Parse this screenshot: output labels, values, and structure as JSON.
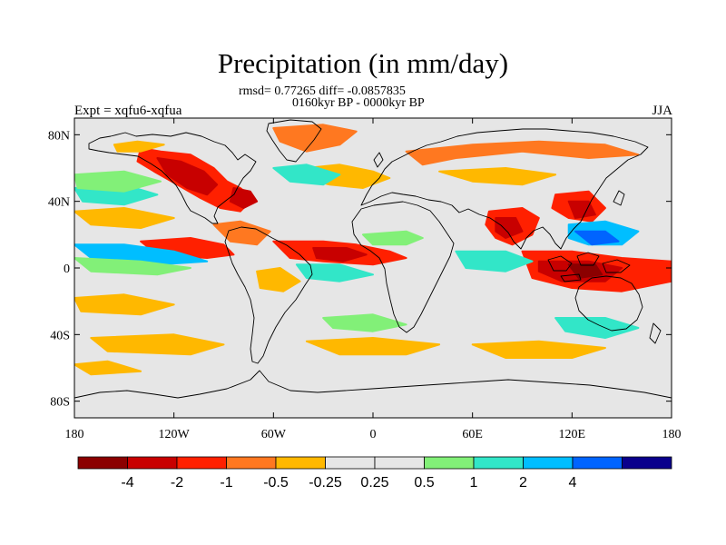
{
  "figure": {
    "title": "Precipitation (in mm/day)",
    "stats": "rmsd= 0.77265 diff= -0.0857835",
    "period": "0160kyr BP - 0000kyr BP",
    "experiment": "Expt = xqfu6-xqfua",
    "season": "JJA"
  },
  "axes": {
    "lon_ticks": [
      {
        "value": -180,
        "label": "180"
      },
      {
        "value": -120,
        "label": "120W"
      },
      {
        "value": -60,
        "label": "60W"
      },
      {
        "value": 0,
        "label": "0"
      },
      {
        "value": 60,
        "label": "60E"
      },
      {
        "value": 120,
        "label": "120E"
      },
      {
        "value": 180,
        "label": "180"
      }
    ],
    "lat_ticks": [
      {
        "value": 80,
        "label": "80N"
      },
      {
        "value": 40,
        "label": "40N"
      },
      {
        "value": 0,
        "label": "0"
      },
      {
        "value": -40,
        "label": "40S"
      },
      {
        "value": -80,
        "label": "80S"
      }
    ],
    "lon_range": [
      -180,
      180
    ],
    "lat_range": [
      -90,
      90
    ]
  },
  "colorbar": {
    "colors": [
      "#8b0000",
      "#c80000",
      "#ff2000",
      "#ff7820",
      "#ffb800",
      "#e6e6e6",
      "#e6e6e6",
      "#82f078",
      "#32e6c8",
      "#00beff",
      "#0064ff",
      "#0a008c"
    ],
    "boundaries": [
      {
        "value": -4,
        "label": "-4"
      },
      {
        "value": -2,
        "label": "-2"
      },
      {
        "value": -1,
        "label": "-1"
      },
      {
        "value": -0.5,
        "label": "-0.5"
      },
      {
        "value": -0.25,
        "label": "-0.25"
      },
      {
        "value": 0.25,
        "label": "0.25"
      },
      {
        "value": 0.5,
        "label": "0.5"
      },
      {
        "value": 1,
        "label": "1"
      },
      {
        "value": 2,
        "label": "2"
      },
      {
        "value": 4,
        "label": "4"
      }
    ]
  },
  "map_style": {
    "background": "#e6e6e6",
    "coastline": "#000000"
  },
  "anomaly_regions": [
    {
      "name": "north-america-dry",
      "color": "#ff2000",
      "points": [
        [
          -140,
          72
        ],
        [
          -128,
          70
        ],
        [
          -110,
          68
        ],
        [
          -96,
          60
        ],
        [
          -88,
          52
        ],
        [
          -80,
          48
        ],
        [
          -72,
          42
        ],
        [
          -80,
          34
        ],
        [
          -92,
          36
        ],
        [
          -104,
          42
        ],
        [
          -118,
          50
        ],
        [
          -132,
          58
        ],
        [
          -142,
          64
        ]
      ]
    },
    {
      "name": "north-america-dry-core",
      "color": "#c80000",
      "points": [
        [
          -130,
          66
        ],
        [
          -116,
          64
        ],
        [
          -102,
          58
        ],
        [
          -94,
          50
        ],
        [
          -100,
          44
        ],
        [
          -112,
          48
        ],
        [
          -124,
          56
        ]
      ]
    },
    {
      "name": "nw-america-orange",
      "color": "#ffb800",
      "points": [
        [
          -156,
          74
        ],
        [
          -142,
          76
        ],
        [
          -126,
          74
        ],
        [
          -140,
          70
        ],
        [
          -154,
          70
        ]
      ]
    },
    {
      "name": "east-us-dry",
      "color": "#c80000",
      "points": [
        [
          -84,
          48
        ],
        [
          -74,
          46
        ],
        [
          -70,
          40
        ],
        [
          -78,
          36
        ],
        [
          -86,
          40
        ]
      ]
    },
    {
      "name": "greenland-orange",
      "color": "#ff7820",
      "points": [
        [
          -60,
          84
        ],
        [
          -30,
          86
        ],
        [
          -10,
          82
        ],
        [
          -20,
          74
        ],
        [
          -40,
          70
        ],
        [
          -56,
          76
        ]
      ]
    },
    {
      "name": "arctic-orange",
      "color": "#ffb800",
      "points": [
        [
          -40,
          60
        ],
        [
          -20,
          62
        ],
        [
          0,
          58
        ],
        [
          10,
          54
        ],
        [
          -6,
          48
        ],
        [
          -26,
          50
        ],
        [
          -42,
          54
        ]
      ]
    },
    {
      "name": "eurasia-north-orange",
      "color": "#ff7820",
      "points": [
        [
          20,
          70
        ],
        [
          60,
          74
        ],
        [
          100,
          76
        ],
        [
          140,
          74
        ],
        [
          160,
          68
        ],
        [
          130,
          66
        ],
        [
          90,
          70
        ],
        [
          50,
          66
        ],
        [
          30,
          62
        ]
      ]
    },
    {
      "name": "central-asia-orange",
      "color": "#ffb800",
      "points": [
        [
          40,
          58
        ],
        [
          80,
          60
        ],
        [
          110,
          56
        ],
        [
          90,
          50
        ],
        [
          60,
          52
        ]
      ]
    },
    {
      "name": "pacific-east-blue",
      "color": "#32e6c8",
      "points": [
        [
          -180,
          48
        ],
        [
          -150,
          50
        ],
        [
          -130,
          44
        ],
        [
          -150,
          38
        ],
        [
          -175,
          40
        ]
      ]
    },
    {
      "name": "pacific-east-green",
      "color": "#82f078",
      "points": [
        [
          -180,
          56
        ],
        [
          -150,
          58
        ],
        [
          -128,
          52
        ],
        [
          -150,
          46
        ],
        [
          -178,
          48
        ]
      ]
    },
    {
      "name": "atlantic-north-blue",
      "color": "#32e6c8",
      "points": [
        [
          -60,
          60
        ],
        [
          -40,
          62
        ],
        [
          -20,
          56
        ],
        [
          -30,
          50
        ],
        [
          -50,
          52
        ]
      ]
    },
    {
      "name": "north-pacific-orange",
      "color": "#ffb800",
      "points": [
        [
          -180,
          34
        ],
        [
          -150,
          36
        ],
        [
          -120,
          30
        ],
        [
          -140,
          24
        ],
        [
          -170,
          26
        ]
      ]
    },
    {
      "name": "east-pacific-itcz-dry",
      "color": "#ff2000",
      "points": [
        [
          -140,
          16
        ],
        [
          -110,
          18
        ],
        [
          -90,
          14
        ],
        [
          -84,
          8
        ],
        [
          -100,
          6
        ],
        [
          -130,
          8
        ]
      ]
    },
    {
      "name": "east-pacific-itcz-wet",
      "color": "#00beff",
      "points": [
        [
          -180,
          14
        ],
        [
          -150,
          14
        ],
        [
          -120,
          10
        ],
        [
          -100,
          4
        ],
        [
          -130,
          2
        ],
        [
          -170,
          6
        ]
      ]
    },
    {
      "name": "east-pacific-green",
      "color": "#82f078",
      "points": [
        [
          -180,
          6
        ],
        [
          -140,
          4
        ],
        [
          -110,
          0
        ],
        [
          -130,
          -4
        ],
        [
          -170,
          -2
        ]
      ]
    },
    {
      "name": "caribbean-dry",
      "color": "#ff7820",
      "points": [
        [
          -96,
          26
        ],
        [
          -80,
          28
        ],
        [
          -62,
          22
        ],
        [
          -70,
          14
        ],
        [
          -86,
          16
        ]
      ]
    },
    {
      "name": "atlantic-itcz-dry",
      "color": "#ff2000",
      "points": [
        [
          -60,
          16
        ],
        [
          -30,
          16
        ],
        [
          -10,
          14
        ],
        [
          10,
          10
        ],
        [
          20,
          6
        ],
        [
          0,
          2
        ],
        [
          -30,
          4
        ],
        [
          -50,
          6
        ]
      ]
    },
    {
      "name": "atlantic-itcz-dark",
      "color": "#c80000",
      "points": [
        [
          -36,
          12
        ],
        [
          -16,
          12
        ],
        [
          -4,
          8
        ],
        [
          -18,
          4
        ],
        [
          -34,
          6
        ]
      ]
    },
    {
      "name": "south-atlantic-wet",
      "color": "#32e6c8",
      "points": [
        [
          -46,
          2
        ],
        [
          -20,
          2
        ],
        [
          0,
          -4
        ],
        [
          -20,
          -8
        ],
        [
          -40,
          -6
        ]
      ]
    },
    {
      "name": "south-america-orange",
      "color": "#ffb800",
      "points": [
        [
          -70,
          -2
        ],
        [
          -56,
          0
        ],
        [
          -44,
          -8
        ],
        [
          -54,
          -14
        ],
        [
          -68,
          -12
        ]
      ]
    },
    {
      "name": "africa-north-green",
      "color": "#82f078",
      "points": [
        [
          -6,
          20
        ],
        [
          20,
          22
        ],
        [
          30,
          18
        ],
        [
          20,
          14
        ],
        [
          0,
          14
        ]
      ]
    },
    {
      "name": "indian-monsoon-dry",
      "color": "#ff2000",
      "points": [
        [
          70,
          34
        ],
        [
          90,
          36
        ],
        [
          100,
          30
        ],
        [
          96,
          20
        ],
        [
          84,
          14
        ],
        [
          74,
          18
        ],
        [
          68,
          26
        ]
      ]
    },
    {
      "name": "india-dark",
      "color": "#c80000",
      "points": [
        [
          74,
          30
        ],
        [
          86,
          30
        ],
        [
          90,
          22
        ],
        [
          80,
          18
        ],
        [
          74,
          22
        ]
      ]
    },
    {
      "name": "east-asia-dry",
      "color": "#ff2000",
      "points": [
        [
          110,
          44
        ],
        [
          130,
          46
        ],
        [
          140,
          36
        ],
        [
          132,
          28
        ],
        [
          118,
          30
        ],
        [
          108,
          36
        ]
      ]
    },
    {
      "name": "east-asia-core",
      "color": "#c80000",
      "points": [
        [
          118,
          40
        ],
        [
          130,
          40
        ],
        [
          134,
          32
        ],
        [
          122,
          30
        ]
      ]
    },
    {
      "name": "nw-pacific-blue",
      "color": "#00beff",
      "points": [
        [
          118,
          26
        ],
        [
          140,
          28
        ],
        [
          160,
          22
        ],
        [
          150,
          14
        ],
        [
          130,
          14
        ],
        [
          118,
          18
        ]
      ]
    },
    {
      "name": "nw-pacific-deep",
      "color": "#0064ff",
      "points": [
        [
          122,
          22
        ],
        [
          140,
          22
        ],
        [
          148,
          16
        ],
        [
          132,
          14
        ]
      ]
    },
    {
      "name": "maritime-dry",
      "color": "#ff2000",
      "points": [
        [
          90,
          10
        ],
        [
          120,
          10
        ],
        [
          150,
          6
        ],
        [
          180,
          4
        ],
        [
          180,
          -8
        ],
        [
          150,
          -14
        ],
        [
          120,
          -12
        ],
        [
          96,
          -6
        ]
      ]
    },
    {
      "name": "maritime-dark",
      "color": "#c80000",
      "points": [
        [
          100,
          4
        ],
        [
          130,
          4
        ],
        [
          150,
          0
        ],
        [
          140,
          -8
        ],
        [
          114,
          -8
        ],
        [
          100,
          -2
        ]
      ]
    },
    {
      "name": "maritime-dark-2",
      "color": "#8b0000",
      "points": [
        [
          118,
          2
        ],
        [
          134,
          2
        ],
        [
          138,
          -4
        ],
        [
          124,
          -6
        ]
      ]
    },
    {
      "name": "indian-ocean-blue",
      "color": "#32e6c8",
      "points": [
        [
          50,
          10
        ],
        [
          80,
          10
        ],
        [
          96,
          4
        ],
        [
          80,
          -2
        ],
        [
          56,
          0
        ]
      ]
    },
    {
      "name": "south-pacific-orange",
      "color": "#ffb800",
      "points": [
        [
          -180,
          -18
        ],
        [
          -150,
          -16
        ],
        [
          -120,
          -22
        ],
        [
          -140,
          -28
        ],
        [
          -176,
          -26
        ]
      ]
    },
    {
      "name": "southern-ocean-orange",
      "color": "#ffb800",
      "points": [
        [
          -170,
          -42
        ],
        [
          -120,
          -40
        ],
        [
          -90,
          -46
        ],
        [
          -110,
          -52
        ],
        [
          -160,
          -50
        ]
      ]
    },
    {
      "name": "southern-ocean-orange-2",
      "color": "#ffb800",
      "points": [
        [
          -40,
          -44
        ],
        [
          0,
          -42
        ],
        [
          40,
          -46
        ],
        [
          20,
          -52
        ],
        [
          -20,
          -52
        ]
      ]
    },
    {
      "name": "southern-ocean-orange-3",
      "color": "#ffb800",
      "points": [
        [
          60,
          -46
        ],
        [
          100,
          -44
        ],
        [
          140,
          -48
        ],
        [
          120,
          -54
        ],
        [
          80,
          -54
        ]
      ]
    },
    {
      "name": "southern-ocean-green",
      "color": "#82f078",
      "points": [
        [
          -30,
          -30
        ],
        [
          0,
          -28
        ],
        [
          20,
          -34
        ],
        [
          0,
          -38
        ],
        [
          -24,
          -36
        ]
      ]
    },
    {
      "name": "australia-south-blue",
      "color": "#32e6c8",
      "points": [
        [
          110,
          -30
        ],
        [
          140,
          -30
        ],
        [
          160,
          -36
        ],
        [
          140,
          -42
        ],
        [
          116,
          -38
        ]
      ]
    },
    {
      "name": "west-pacific-orange",
      "color": "#ffb800",
      "points": [
        [
          -180,
          -58
        ],
        [
          -160,
          -56
        ],
        [
          -140,
          -62
        ],
        [
          -170,
          -64
        ]
      ]
    }
  ]
}
